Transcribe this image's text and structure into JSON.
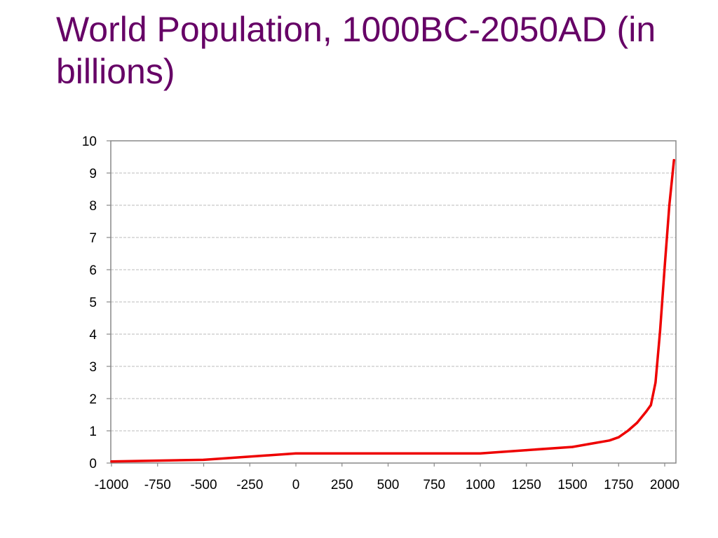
{
  "slide": {
    "title": "World Population, 1000BC-2050AD (in billions)"
  },
  "colors": {
    "title": "#660066",
    "series_line": "#ee0000",
    "plot_border": "#888888",
    "gridline": "#bbbbbb"
  },
  "chart_data": {
    "type": "line",
    "title": "World Population, 1000BC-2050AD (in billions)",
    "xlabel": "",
    "ylabel": "",
    "xlim": [
      -1000,
      2050
    ],
    "ylim": [
      0,
      10
    ],
    "x_ticks": [
      -1000,
      -750,
      -500,
      -250,
      0,
      250,
      500,
      750,
      1000,
      1250,
      1500,
      1750,
      2000
    ],
    "y_ticks": [
      0,
      1,
      2,
      3,
      4,
      5,
      6,
      7,
      8,
      9,
      10
    ],
    "grid": "horizontal dashed",
    "legend": "none",
    "series": [
      {
        "color": "#ee0000",
        "x": [
          -1000,
          -500,
          0,
          500,
          1000,
          1250,
          1500,
          1600,
          1700,
          1750,
          1800,
          1850,
          1900,
          1925,
          1950,
          1975,
          2000,
          2025,
          2050
        ],
        "y": [
          0.05,
          0.1,
          0.3,
          0.3,
          0.3,
          0.4,
          0.5,
          0.6,
          0.7,
          0.8,
          1.0,
          1.25,
          1.6,
          1.8,
          2.5,
          4.1,
          6.1,
          8.0,
          9.4
        ]
      }
    ]
  }
}
